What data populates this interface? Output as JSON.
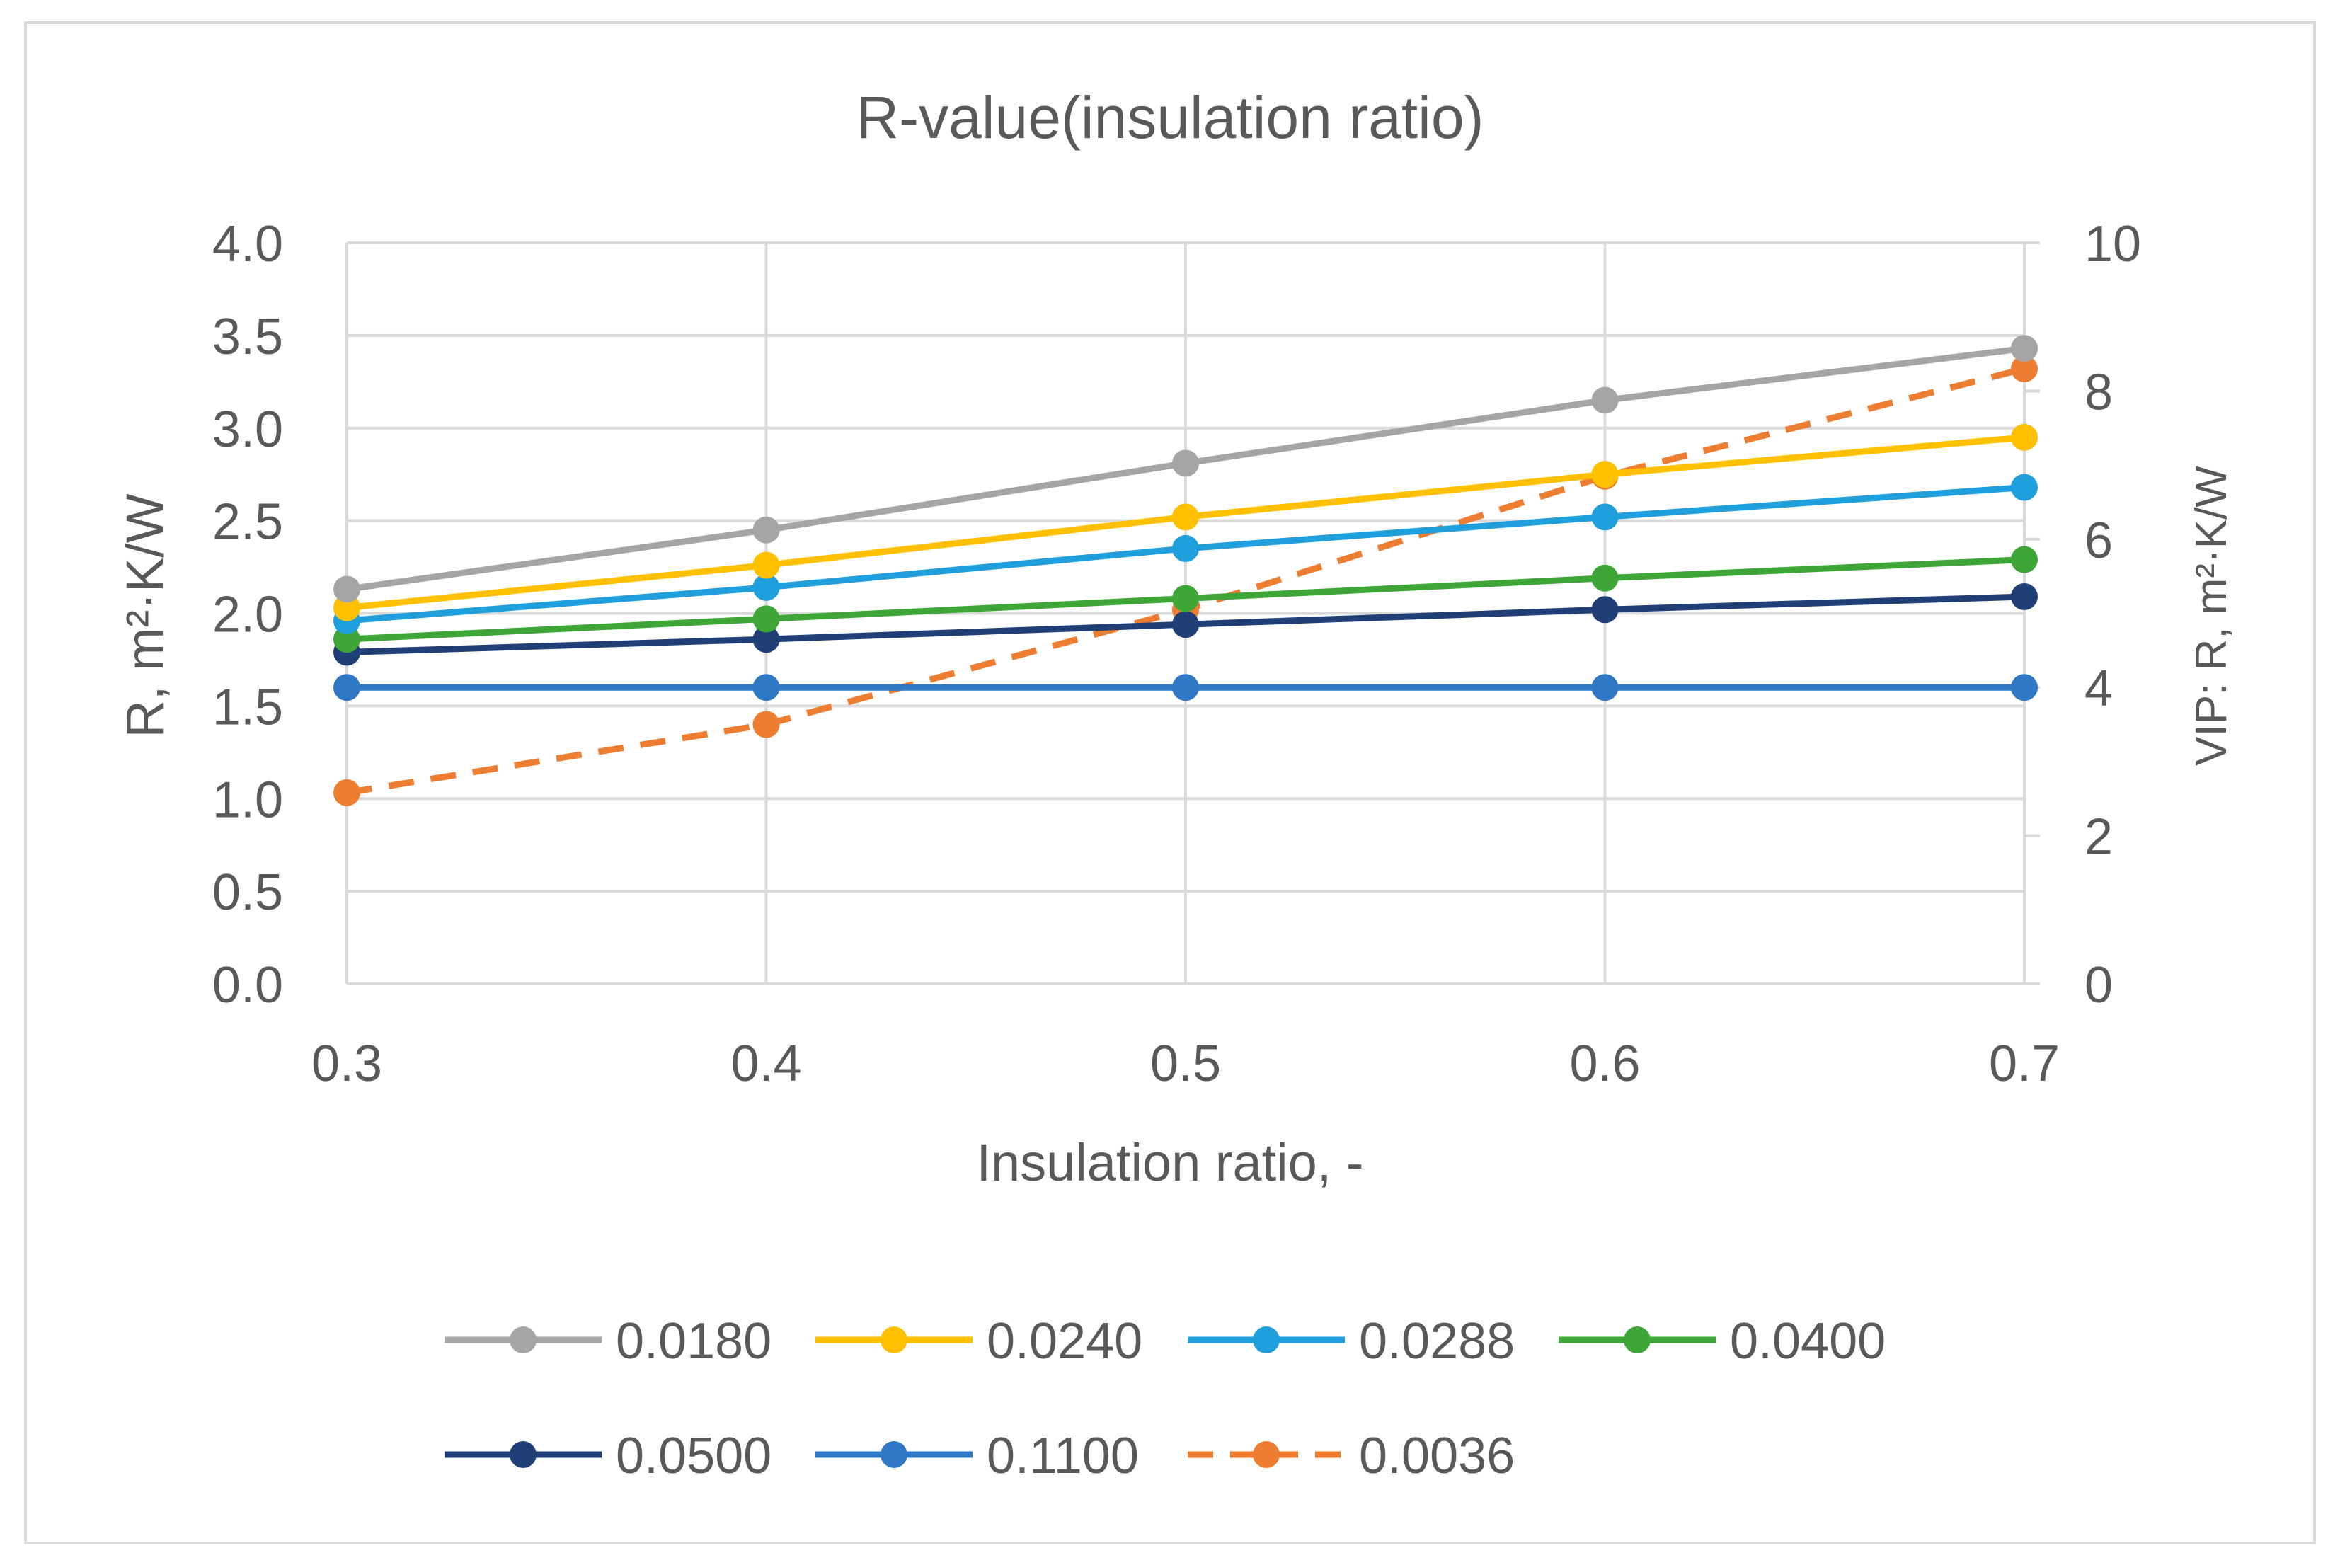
{
  "chart_data": {
    "type": "line",
    "title": "R-value(insulation ratio)",
    "xlabel": "Insulation ratio, -",
    "ylabel": "R, m²·K/W",
    "y2label": "VIP: R, m²·K/W",
    "x": [
      0.3,
      0.4,
      0.5,
      0.6,
      0.7
    ],
    "x_tick_labels": [
      "0.3",
      "0.4",
      "0.5",
      "0.6",
      "0.7"
    ],
    "ylim": [
      0,
      4
    ],
    "y_ticks": [
      0,
      0.5,
      1,
      1.5,
      2,
      2.5,
      3,
      3.5,
      4
    ],
    "y_tick_labels": [
      "0.0",
      "0.5",
      "1.0",
      "1.5",
      "2.0",
      "2.5",
      "3.0",
      "3.5",
      "4.0"
    ],
    "y2lim": [
      0,
      10
    ],
    "y2_ticks": [
      0,
      2,
      4,
      6,
      8,
      10
    ],
    "y2_tick_labels": [
      "0",
      "2",
      "4",
      "6",
      "8",
      "10"
    ],
    "grid": true,
    "legend_position": "bottom",
    "series": [
      {
        "name": "0.0180",
        "color": "#a5a5a5",
        "axis": "left",
        "dashed": false,
        "values": [
          2.13,
          2.45,
          2.81,
          3.15,
          3.43
        ]
      },
      {
        "name": "0.0240",
        "color": "#ffc000",
        "axis": "left",
        "dashed": false,
        "values": [
          2.03,
          2.26,
          2.52,
          2.75,
          2.95
        ]
      },
      {
        "name": "0.0288",
        "color": "#1f9fdb",
        "axis": "left",
        "dashed": false,
        "values": [
          1.96,
          2.14,
          2.35,
          2.52,
          2.68
        ]
      },
      {
        "name": "0.0400",
        "color": "#3ea637",
        "axis": "left",
        "dashed": false,
        "values": [
          1.86,
          1.97,
          2.08,
          2.19,
          2.29
        ]
      },
      {
        "name": "0.0500",
        "color": "#1f3f76",
        "axis": "left",
        "dashed": false,
        "values": [
          1.79,
          1.86,
          1.94,
          2.02,
          2.09
        ]
      },
      {
        "name": "0.1100",
        "color": "#2f78c6",
        "axis": "left",
        "dashed": false,
        "values": [
          1.6,
          1.6,
          1.6,
          1.6,
          1.6
        ]
      },
      {
        "name": "0.0036",
        "color": "#ed7d31",
        "axis": "right",
        "dashed": true,
        "values": [
          2.58,
          3.5,
          5.05,
          6.85,
          8.3
        ]
      }
    ]
  }
}
